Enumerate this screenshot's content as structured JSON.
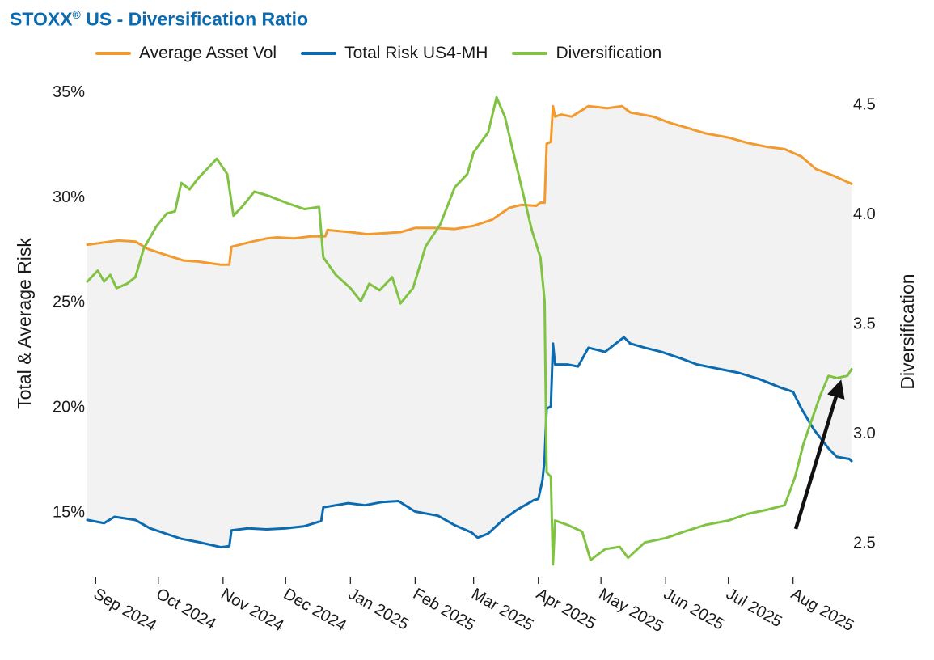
{
  "title": {
    "main": "STOXX",
    "reg": "®",
    "rest": " US - Diversification Ratio"
  },
  "chart_data": {
    "type": "line",
    "title": "STOXX® US - Diversification Ratio",
    "x_type": "date",
    "x_range": [
      "2024-08-28",
      "2025-08-29"
    ],
    "month_ticks": [
      {
        "date": "2024-09-01",
        "label": "Sep 2024"
      },
      {
        "date": "2024-10-01",
        "label": "Oct 2024"
      },
      {
        "date": "2024-11-01",
        "label": "Nov 2024"
      },
      {
        "date": "2024-12-01",
        "label": "Dec 2024"
      },
      {
        "date": "2025-01-01",
        "label": "Jan 2025"
      },
      {
        "date": "2025-02-01",
        "label": "Feb 2025"
      },
      {
        "date": "2025-03-01",
        "label": "Mar 2025"
      },
      {
        "date": "2025-04-01",
        "label": "Apr 2025"
      },
      {
        "date": "2025-05-01",
        "label": "May 2025"
      },
      {
        "date": "2025-06-01",
        "label": "Jun 2025"
      },
      {
        "date": "2025-07-01",
        "label": "Jul 2025"
      },
      {
        "date": "2025-08-01",
        "label": "Aug 2025"
      }
    ],
    "y_left": {
      "label": "Total & Average Risk",
      "range": [
        12.4,
        35.5
      ],
      "ticks": [
        15,
        20,
        25,
        30,
        35
      ],
      "tick_labels": [
        "15%",
        "20%",
        "25%",
        "30%",
        "35%"
      ],
      "unit": "%"
    },
    "y_right": {
      "label": "Diversification",
      "range": [
        2.392,
        4.605
      ],
      "ticks": [
        2.5,
        3.0,
        3.5,
        4.0,
        4.5
      ],
      "tick_labels": [
        "2.5",
        "3.0",
        "3.5",
        "4.0",
        "4.5"
      ]
    },
    "shaded_area_between": [
      "Average Asset Vol",
      "Total Risk US4-MH"
    ],
    "grid": false,
    "legend_position": "top",
    "annotation": "upward arrow near Aug 2025 pointing at Diversification",
    "series": [
      {
        "name": "Average Asset Vol",
        "axis": "left",
        "color": "#f39a2e",
        "points": [
          [
            "2024-08-28",
            27.7
          ],
          [
            "2024-09-08",
            27.85
          ],
          [
            "2024-09-12",
            27.9
          ],
          [
            "2024-09-20",
            27.85
          ],
          [
            "2024-09-26",
            27.5
          ],
          [
            "2024-10-05",
            27.2
          ],
          [
            "2024-10-13",
            26.95
          ],
          [
            "2024-10-20",
            26.9
          ],
          [
            "2024-10-31",
            26.75
          ],
          [
            "2024-11-04",
            26.75
          ],
          [
            "2024-11-05",
            27.6
          ],
          [
            "2024-11-15",
            27.85
          ],
          [
            "2024-11-22",
            28.0
          ],
          [
            "2024-11-27",
            28.05
          ],
          [
            "2024-12-05",
            28.0
          ],
          [
            "2024-12-13",
            28.1
          ],
          [
            "2024-12-20",
            28.1
          ],
          [
            "2024-12-21",
            28.4
          ],
          [
            "2025-01-01",
            28.3
          ],
          [
            "2025-01-09",
            28.2
          ],
          [
            "2025-01-18",
            28.25
          ],
          [
            "2025-01-25",
            28.3
          ],
          [
            "2025-02-01",
            28.5
          ],
          [
            "2025-02-10",
            28.5
          ],
          [
            "2025-02-20",
            28.45
          ],
          [
            "2025-03-01",
            28.6
          ],
          [
            "2025-03-10",
            28.9
          ],
          [
            "2025-03-18",
            29.45
          ],
          [
            "2025-03-24",
            29.6
          ],
          [
            "2025-03-31",
            29.55
          ],
          [
            "2025-04-02",
            29.7
          ],
          [
            "2025-04-04",
            29.7
          ],
          [
            "2025-04-05",
            32.5
          ],
          [
            "2025-04-07",
            32.6
          ],
          [
            "2025-04-08",
            34.3
          ],
          [
            "2025-04-09",
            33.8
          ],
          [
            "2025-04-12",
            33.9
          ],
          [
            "2025-04-17",
            33.8
          ],
          [
            "2025-04-25",
            34.3
          ],
          [
            "2025-05-04",
            34.2
          ],
          [
            "2025-05-11",
            34.3
          ],
          [
            "2025-05-15",
            34.0
          ],
          [
            "2025-05-26",
            33.8
          ],
          [
            "2025-06-03",
            33.5
          ],
          [
            "2025-06-10",
            33.3
          ],
          [
            "2025-06-20",
            33.0
          ],
          [
            "2025-07-01",
            32.8
          ],
          [
            "2025-07-10",
            32.55
          ],
          [
            "2025-07-20",
            32.35
          ],
          [
            "2025-07-28",
            32.25
          ],
          [
            "2025-08-05",
            31.9
          ],
          [
            "2025-08-12",
            31.3
          ],
          [
            "2025-08-20",
            31.0
          ],
          [
            "2025-08-29",
            30.6
          ]
        ]
      },
      {
        "name": "Total Risk US4-MH",
        "axis": "left",
        "color": "#0a6bb1",
        "points": [
          [
            "2024-08-28",
            14.6
          ],
          [
            "2024-09-05",
            14.45
          ],
          [
            "2024-09-10",
            14.75
          ],
          [
            "2024-09-20",
            14.6
          ],
          [
            "2024-09-27",
            14.2
          ],
          [
            "2024-10-06",
            13.9
          ],
          [
            "2024-10-12",
            13.7
          ],
          [
            "2024-10-20",
            13.55
          ],
          [
            "2024-10-31",
            13.3
          ],
          [
            "2024-11-04",
            13.35
          ],
          [
            "2024-11-05",
            14.1
          ],
          [
            "2024-11-13",
            14.2
          ],
          [
            "2024-11-22",
            14.15
          ],
          [
            "2024-12-01",
            14.2
          ],
          [
            "2024-12-10",
            14.3
          ],
          [
            "2024-12-18",
            14.55
          ],
          [
            "2024-12-19",
            15.2
          ],
          [
            "2024-12-31",
            15.4
          ],
          [
            "2025-01-08",
            15.3
          ],
          [
            "2025-01-16",
            15.45
          ],
          [
            "2025-01-24",
            15.5
          ],
          [
            "2025-02-01",
            15.0
          ],
          [
            "2025-02-12",
            14.8
          ],
          [
            "2025-02-20",
            14.35
          ],
          [
            "2025-02-28",
            14.0
          ],
          [
            "2025-03-03",
            13.75
          ],
          [
            "2025-03-08",
            13.95
          ],
          [
            "2025-03-15",
            14.6
          ],
          [
            "2025-03-22",
            15.1
          ],
          [
            "2025-03-30",
            15.55
          ],
          [
            "2025-04-01",
            15.6
          ],
          [
            "2025-04-03",
            16.5
          ],
          [
            "2025-04-04",
            17.5
          ],
          [
            "2025-04-05",
            19.9
          ],
          [
            "2025-04-07",
            20.0
          ],
          [
            "2025-04-08",
            23.0
          ],
          [
            "2025-04-09",
            22.0
          ],
          [
            "2025-04-15",
            22.0
          ],
          [
            "2025-04-20",
            21.9
          ],
          [
            "2025-04-25",
            22.8
          ],
          [
            "2025-05-03",
            22.6
          ],
          [
            "2025-05-12",
            23.3
          ],
          [
            "2025-05-15",
            23.0
          ],
          [
            "2025-05-22",
            22.8
          ],
          [
            "2025-05-30",
            22.6
          ],
          [
            "2025-06-08",
            22.3
          ],
          [
            "2025-06-16",
            22.0
          ],
          [
            "2025-06-26",
            21.8
          ],
          [
            "2025-07-06",
            21.6
          ],
          [
            "2025-07-16",
            21.3
          ],
          [
            "2025-07-26",
            20.9
          ],
          [
            "2025-08-01",
            20.7
          ],
          [
            "2025-08-05",
            19.9
          ],
          [
            "2025-08-11",
            18.9
          ],
          [
            "2025-08-18",
            18.0
          ],
          [
            "2025-08-22",
            17.6
          ],
          [
            "2025-08-28",
            17.5
          ],
          [
            "2025-08-29",
            17.4
          ]
        ]
      },
      {
        "name": "Diversification",
        "axis": "right",
        "color": "#80c342",
        "points": [
          [
            "2024-08-28",
            3.69
          ],
          [
            "2024-09-02",
            3.74
          ],
          [
            "2024-09-05",
            3.69
          ],
          [
            "2024-09-08",
            3.72
          ],
          [
            "2024-09-11",
            3.66
          ],
          [
            "2024-09-16",
            3.68
          ],
          [
            "2024-09-20",
            3.71
          ],
          [
            "2024-09-24",
            3.84
          ],
          [
            "2024-09-30",
            3.94
          ],
          [
            "2024-10-05",
            4.0
          ],
          [
            "2024-10-09",
            4.01
          ],
          [
            "2024-10-12",
            4.14
          ],
          [
            "2024-10-16",
            4.11
          ],
          [
            "2024-10-20",
            4.16
          ],
          [
            "2024-10-25",
            4.21
          ],
          [
            "2024-10-29",
            4.25
          ],
          [
            "2024-11-03",
            4.18
          ],
          [
            "2024-11-06",
            3.99
          ],
          [
            "2024-11-10",
            4.03
          ],
          [
            "2024-11-16",
            4.1
          ],
          [
            "2024-11-23",
            4.08
          ],
          [
            "2024-12-01",
            4.05
          ],
          [
            "2024-12-10",
            4.02
          ],
          [
            "2024-12-17",
            4.03
          ],
          [
            "2024-12-19",
            3.8
          ],
          [
            "2024-12-25",
            3.72
          ],
          [
            "2025-01-01",
            3.66
          ],
          [
            "2025-01-06",
            3.6
          ],
          [
            "2025-01-10",
            3.68
          ],
          [
            "2025-01-15",
            3.65
          ],
          [
            "2025-01-21",
            3.71
          ],
          [
            "2025-01-25",
            3.59
          ],
          [
            "2025-01-31",
            3.66
          ],
          [
            "2025-02-06",
            3.85
          ],
          [
            "2025-02-13",
            3.95
          ],
          [
            "2025-02-20",
            4.12
          ],
          [
            "2025-02-26",
            4.18
          ],
          [
            "2025-03-01",
            4.28
          ],
          [
            "2025-03-08",
            4.37
          ],
          [
            "2025-03-12",
            4.53
          ],
          [
            "2025-03-16",
            4.44
          ],
          [
            "2025-03-20",
            4.28
          ],
          [
            "2025-03-25",
            4.08
          ],
          [
            "2025-03-29",
            3.92
          ],
          [
            "2025-04-02",
            3.8
          ],
          [
            "2025-04-04",
            3.6
          ],
          [
            "2025-04-05",
            2.82
          ],
          [
            "2025-04-07",
            2.8
          ],
          [
            "2025-04-08",
            2.4
          ],
          [
            "2025-04-09",
            2.6
          ],
          [
            "2025-04-15",
            2.58
          ],
          [
            "2025-04-22",
            2.55
          ],
          [
            "2025-04-26",
            2.42
          ],
          [
            "2025-05-03",
            2.47
          ],
          [
            "2025-05-10",
            2.48
          ],
          [
            "2025-05-14",
            2.43
          ],
          [
            "2025-05-22",
            2.5
          ],
          [
            "2025-06-01",
            2.52
          ],
          [
            "2025-06-10",
            2.55
          ],
          [
            "2025-06-20",
            2.58
          ],
          [
            "2025-07-01",
            2.6
          ],
          [
            "2025-07-10",
            2.63
          ],
          [
            "2025-07-20",
            2.65
          ],
          [
            "2025-07-28",
            2.67
          ],
          [
            "2025-08-02",
            2.8
          ],
          [
            "2025-08-06",
            2.95
          ],
          [
            "2025-08-10",
            3.06
          ],
          [
            "2025-08-14",
            3.17
          ],
          [
            "2025-08-18",
            3.26
          ],
          [
            "2025-08-22",
            3.25
          ],
          [
            "2025-08-27",
            3.26
          ],
          [
            "2025-08-29",
            3.29
          ]
        ]
      }
    ]
  }
}
